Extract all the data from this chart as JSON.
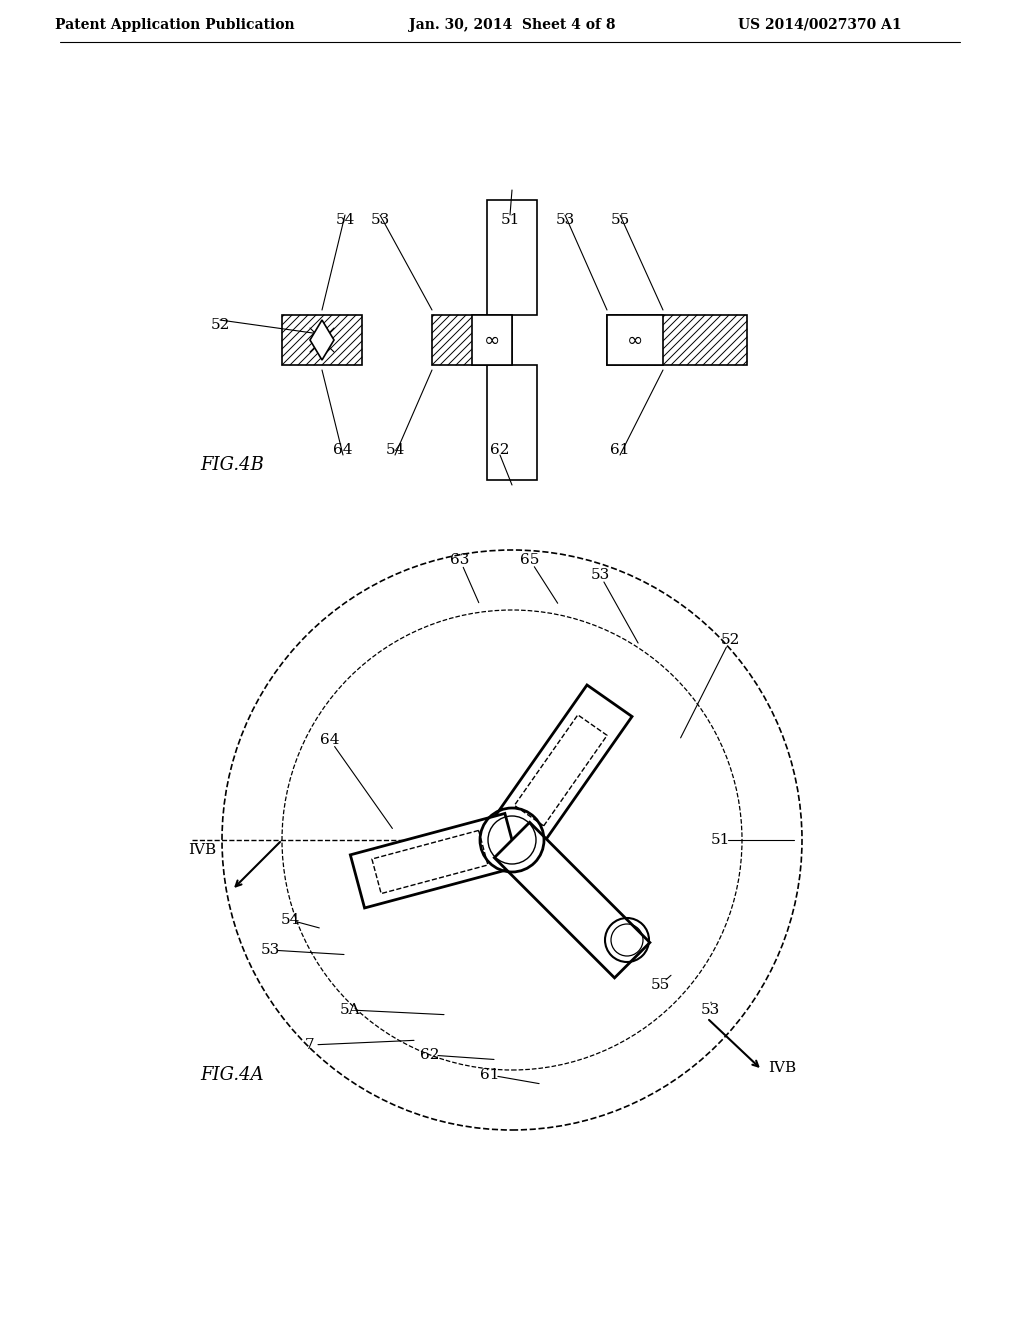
{
  "background": "#ffffff",
  "header_left": "Patent Application Publication",
  "header_mid": "Jan. 30, 2014  Sheet 4 of 8",
  "header_right": "US 2014/0027370 A1",
  "fig4b_label": "FIG.4B",
  "fig4a_label": "FIG.4A"
}
